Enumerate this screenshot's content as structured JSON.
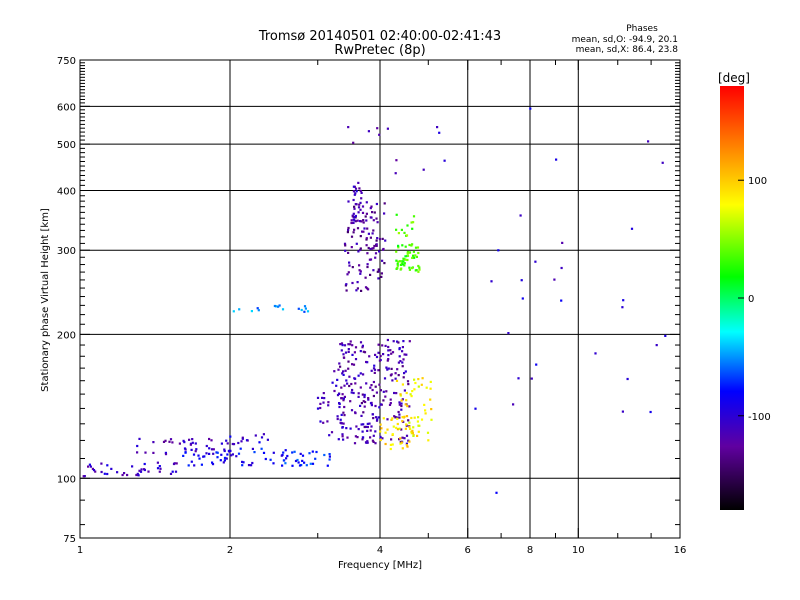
{
  "chart_data": {
    "type": "scatter",
    "title": "Tromsø 20140501 02:40:00-02:41:43",
    "subtitle": "RwPretec (8p)",
    "xlabel": "Frequency [MHz]",
    "ylabel": "Stationary phase Virtual Height [km]",
    "x_scale": "log",
    "y_scale": "log",
    "xlim": [
      1,
      16
    ],
    "ylim": [
      75,
      750
    ],
    "x_ticks": [
      1,
      2,
      4,
      6,
      8,
      10,
      16
    ],
    "x_tick_labels": [
      "1",
      "2",
      "4",
      "6",
      "8",
      "10",
      "16"
    ],
    "x_minor_ticks": [
      3,
      5,
      7,
      9,
      12,
      14
    ],
    "y_ticks": [
      75,
      100,
      200,
      300,
      400,
      500,
      600,
      750
    ],
    "y_tick_labels": [
      "75",
      "100",
      "200",
      "300",
      "400",
      "500",
      "600",
      "750"
    ],
    "grid": true,
    "stats": {
      "heading": "Phases",
      "line_o": "mean, sd,O: -94.9, 20.1",
      "line_x": "mean, sd,X:  86.4, 23.8"
    },
    "colorbar": {
      "label": "[deg]",
      "range": [
        -180,
        180
      ],
      "ticks": [
        100,
        0,
        -100
      ],
      "tick_labels": [
        "100",
        "0",
        "-100"
      ]
    },
    "clusters": [
      {
        "f": [
          1.0,
          1.6
        ],
        "h": [
          101,
          108
        ],
        "phase": -108,
        "n": 40
      },
      {
        "f": [
          1.3,
          2.1
        ],
        "h": [
          112,
          122
        ],
        "phase": -112,
        "n": 40
      },
      {
        "f": [
          1.6,
          2.6
        ],
        "h": [
          106,
          116
        ],
        "phase": -85,
        "n": 55
      },
      {
        "f": [
          2.5,
          3.2
        ],
        "h": [
          106,
          114
        ],
        "phase": -75,
        "n": 30
      },
      {
        "f": [
          2.0,
          2.4
        ],
        "h": [
          118,
          124
        ],
        "phase": -100,
        "n": 12
      },
      {
        "f": [
          3.0,
          3.4
        ],
        "h": [
          120,
          170
        ],
        "phase": -115,
        "n": 40
      },
      {
        "f": [
          3.3,
          4.6
        ],
        "h": [
          118,
          195
        ],
        "phase": -118,
        "n": 240
      },
      {
        "f": [
          4.0,
          4.8
        ],
        "h": [
          115,
          135
        ],
        "phase": 92,
        "n": 40
      },
      {
        "f": [
          4.3,
          5.1
        ],
        "h": [
          120,
          165
        ],
        "phase": 85,
        "n": 45
      },
      {
        "f": [
          3.4,
          4.1
        ],
        "h": [
          245,
          380
        ],
        "phase": -125,
        "n": 110
      },
      {
        "f": [
          3.5,
          3.7
        ],
        "h": [
          340,
          420
        ],
        "phase": -115,
        "n": 30
      },
      {
        "f": [
          4.3,
          4.8
        ],
        "h": [
          270,
          310
        ],
        "phase": 32,
        "n": 55
      },
      {
        "f": [
          4.3,
          4.7
        ],
        "h": [
          320,
          360
        ],
        "phase": 40,
        "n": 12
      },
      {
        "f": [
          2.0,
          2.9
        ],
        "h": [
          223,
          230
        ],
        "phase": -50,
        "n": 16
      },
      {
        "f": [
          3.4,
          5.4
        ],
        "h": [
          430,
          560
        ],
        "phase": -110,
        "n": 12
      },
      {
        "f": [
          6.2,
          15.0
        ],
        "h": [
          90,
          650
        ],
        "phase": -100,
        "n": 30
      }
    ]
  }
}
